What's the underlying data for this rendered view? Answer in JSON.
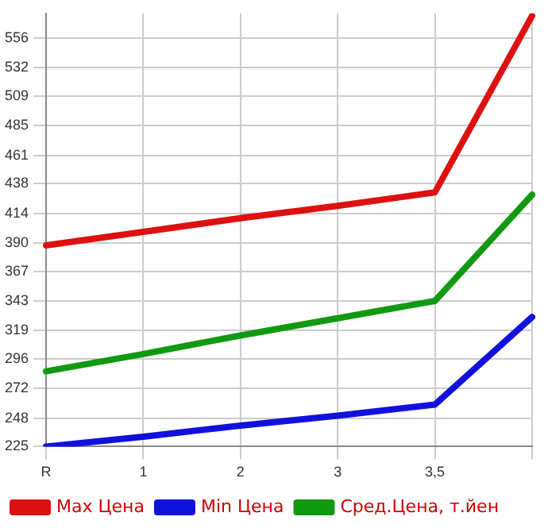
{
  "chart_data": {
    "type": "line",
    "categories": [
      "R",
      "1",
      "2",
      "3",
      "3,5",
      null
    ],
    "series": [
      {
        "name": "Max Цена",
        "color": "#dd1111",
        "values": [
          388,
          399,
          410,
          420,
          431,
          574
        ]
      },
      {
        "name": "Min Цена",
        "color": "#1111dd",
        "values": [
          225,
          233,
          242,
          250,
          259,
          330
        ]
      },
      {
        "name": "Сред.Цена, т.йен",
        "color": "#119911",
        "values": [
          286,
          300,
          315,
          329,
          343,
          429
        ]
      }
    ],
    "ylim": [
      225,
      576
    ],
    "yticks": [
      225,
      248,
      272,
      296,
      319,
      343,
      367,
      390,
      414,
      438,
      461,
      485,
      509,
      532,
      556
    ],
    "grid": true,
    "legend": "bottom",
    "marker": "none",
    "line_style": "solid"
  }
}
